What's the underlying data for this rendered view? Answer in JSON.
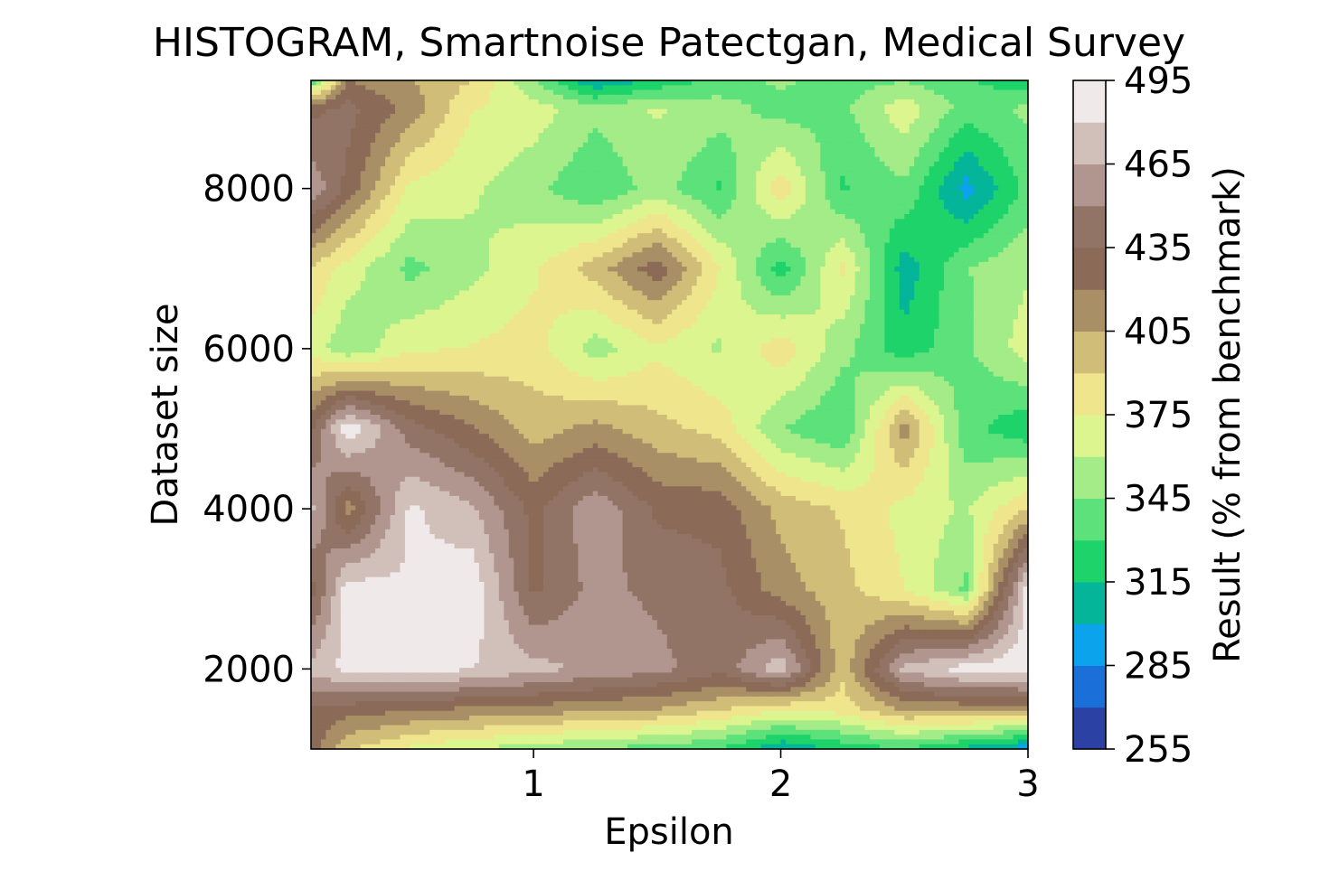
{
  "chart_data": {
    "type": "contour",
    "title": "HISTOGRAM, Smartnoise Patectgan, Medical Survey",
    "xlabel": "Epsilon",
    "ylabel": "Dataset size",
    "xlim": [
      0.1,
      3.0
    ],
    "ylim": [
      1000,
      9350
    ],
    "xticks": [
      1,
      2,
      3
    ],
    "yticks": [
      2000,
      4000,
      6000,
      8000
    ],
    "colorbar": {
      "label": "Result (% from benchmark)",
      "range": [
        255,
        495
      ],
      "levels": [
        255,
        270,
        285,
        300,
        315,
        330,
        345,
        360,
        375,
        390,
        405,
        420,
        435,
        450,
        465,
        480,
        495
      ],
      "ticks": [
        255,
        285,
        315,
        345,
        375,
        405,
        435,
        465,
        495
      ],
      "colors": [
        "#2b41a3",
        "#1a6fd8",
        "#0ba3ec",
        "#04b59a",
        "#1fd36b",
        "#5ce17b",
        "#a3ec88",
        "#ddf58e",
        "#eee58c",
        "#d0bd78",
        "#a88f65",
        "#8b6a57",
        "#927467",
        "#b0968e",
        "#d1bfba",
        "#efeae9"
      ]
    },
    "x": [
      0.1,
      0.25,
      0.5,
      0.75,
      1.0,
      1.25,
      1.5,
      1.75,
      2.0,
      2.25,
      2.5,
      2.75,
      3.0
    ],
    "y": [
      1000,
      1500,
      2000,
      3000,
      4000,
      5000,
      6000,
      7000,
      8000,
      9000,
      9350
    ],
    "z": [
      [
        428,
        392,
        372,
        360,
        352,
        345,
        338,
        330,
        300,
        320,
        330,
        310,
        290
      ],
      [
        432,
        428,
        422,
        418,
        415,
        408,
        405,
        392,
        378,
        382,
        408,
        410,
        412
      ],
      [
        470,
        485,
        490,
        480,
        470,
        462,
        455,
        440,
        475,
        395,
        470,
        488,
        490
      ],
      [
        428,
        488,
        482,
        492,
        432,
        455,
        446,
        440,
        412,
        395,
        375,
        342,
        488
      ],
      [
        470,
        412,
        483,
        468,
        430,
        462,
        432,
        430,
        400,
        388,
        370,
        358,
        390
      ],
      [
        432,
        492,
        442,
        422,
        398,
        410,
        395,
        385,
        345,
        330,
        412,
        335,
        318
      ],
      [
        368,
        348,
        372,
        376,
        382,
        352,
        372,
        358,
        385,
        350,
        320,
        342,
        368
      ],
      [
        388,
        368,
        340,
        356,
        372,
        398,
        430,
        376,
        322,
        378,
        306,
        344,
        358
      ],
      [
        462,
        430,
        372,
        362,
        350,
        330,
        352,
        328,
        385,
        328,
        342,
        294,
        335
      ],
      [
        430,
        440,
        415,
        376,
        368,
        350,
        362,
        352,
        338,
        342,
        370,
        338,
        348
      ],
      [
        330,
        420,
        405,
        390,
        345,
        300,
        318,
        335,
        348,
        338,
        344,
        332,
        318
      ]
    ]
  }
}
